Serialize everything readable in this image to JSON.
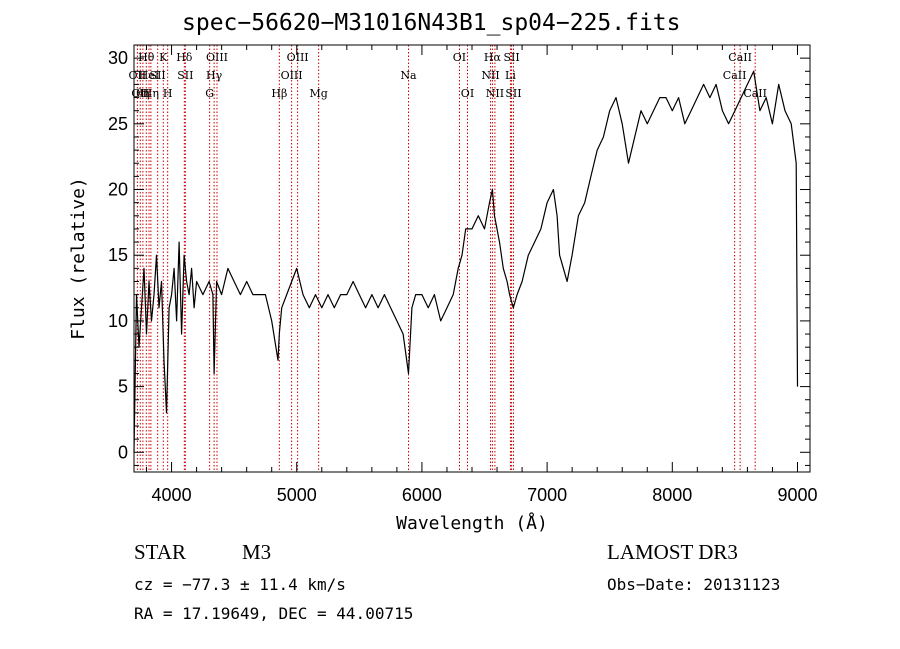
{
  "chart_data": {
    "type": "line",
    "title": "spec−56620−M31016N43B1_sp04−225.fits",
    "xlabel": "Wavelength (Å)",
    "ylabel": "Flux (relative)",
    "xlim": [
      3700,
      9100
    ],
    "ylim": [
      -1.5,
      31
    ],
    "xticks": [
      4000,
      5000,
      6000,
      7000,
      8000,
      9000
    ],
    "yticks": [
      0,
      5,
      10,
      15,
      20,
      25,
      30
    ],
    "line_color": "#000000",
    "marker_color": "#cc0000",
    "series": [
      {
        "name": "flux",
        "x": [
          3700,
          3720,
          3740,
          3760,
          3780,
          3800,
          3820,
          3840,
          3860,
          3880,
          3900,
          3920,
          3940,
          3960,
          3980,
          4000,
          4020,
          4040,
          4060,
          4080,
          4100,
          4120,
          4140,
          4160,
          4180,
          4200,
          4250,
          4300,
          4330,
          4340,
          4360,
          4400,
          4450,
          4500,
          4550,
          4600,
          4650,
          4700,
          4750,
          4800,
          4850,
          4861,
          4880,
          4920,
          4960,
          5000,
          5050,
          5100,
          5150,
          5200,
          5250,
          5300,
          5350,
          5400,
          5450,
          5500,
          5550,
          5600,
          5650,
          5700,
          5750,
          5800,
          5850,
          5893,
          5920,
          5950,
          6000,
          6050,
          6100,
          6150,
          6200,
          6250,
          6290,
          6320,
          6350,
          6400,
          6450,
          6500,
          6540,
          6563,
          6580,
          6600,
          6620,
          6650,
          6680,
          6700,
          6730,
          6760,
          6800,
          6850,
          6900,
          6950,
          7000,
          7050,
          7080,
          7100,
          7130,
          7160,
          7200,
          7250,
          7300,
          7350,
          7400,
          7450,
          7500,
          7550,
          7600,
          7650,
          7700,
          7750,
          7800,
          7850,
          7900,
          7950,
          8000,
          8050,
          8100,
          8150,
          8200,
          8250,
          8300,
          8350,
          8400,
          8450,
          8500,
          8550,
          8600,
          8650,
          8700,
          8750,
          8800,
          8850,
          8900,
          8950,
          8990,
          9000
        ],
        "y": [
          0,
          12,
          8,
          11,
          14,
          9,
          13,
          10,
          12,
          15,
          11,
          13,
          7,
          3,
          11,
          12,
          14,
          10,
          16,
          9,
          15,
          13,
          12,
          14,
          11,
          13,
          12,
          13,
          12,
          6,
          13,
          12,
          14,
          13,
          12,
          13,
          12,
          12,
          12,
          10,
          7,
          9,
          11,
          12,
          13,
          14,
          12,
          11,
          12,
          11,
          12,
          11,
          12,
          12,
          13,
          12,
          11,
          12,
          11,
          12,
          11,
          10,
          9,
          6,
          11,
          12,
          12,
          11,
          12,
          10,
          11,
          12,
          14,
          15,
          17,
          17,
          18,
          17,
          19,
          20,
          18,
          17,
          16,
          14,
          13,
          12,
          11,
          12,
          13,
          15,
          16,
          17,
          19,
          20,
          18,
          15,
          14,
          13,
          15,
          18,
          19,
          21,
          23,
          24,
          26,
          27,
          25,
          22,
          24,
          26,
          25,
          26,
          27,
          27,
          26,
          27,
          25,
          26,
          27,
          28,
          27,
          28,
          26,
          25,
          26,
          27,
          28,
          29,
          26,
          27,
          25,
          28,
          26,
          25,
          22,
          5
        ]
      }
    ],
    "lines": [
      {
        "wl": 3727,
        "label": "OII",
        "row": 1
      },
      {
        "wl": 3750,
        "label": "OII",
        "row": 2
      },
      {
        "wl": 3771,
        "label": "θη",
        "row": 2
      },
      {
        "wl": 3798,
        "label": "Hθ",
        "row": 0
      },
      {
        "wl": 3820,
        "label": "HeI",
        "row": 1
      },
      {
        "wl": 3835,
        "label": "Hη",
        "row": 2
      },
      {
        "wl": 3889,
        "label": "SII",
        "row": 1
      },
      {
        "wl": 3934,
        "label": "K",
        "row": 0
      },
      {
        "wl": 3969,
        "label": "H",
        "row": 2
      },
      {
        "wl": 4102,
        "label": "Hδ",
        "row": 0
      },
      {
        "wl": 4110,
        "label": "SII",
        "row": 1
      },
      {
        "wl": 4304,
        "label": "G",
        "row": 2
      },
      {
        "wl": 4340,
        "label": "Hγ",
        "row": 1
      },
      {
        "wl": 4363,
        "label": "OIII",
        "row": 0
      },
      {
        "wl": 4861,
        "label": "Hβ",
        "row": 2
      },
      {
        "wl": 4959,
        "label": "OIII",
        "row": 1
      },
      {
        "wl": 5007,
        "label": "OIII",
        "row": 0
      },
      {
        "wl": 5175,
        "label": "Mg",
        "row": 2
      },
      {
        "wl": 5893,
        "label": "Na",
        "row": 1
      },
      {
        "wl": 6300,
        "label": "OI",
        "row": 0
      },
      {
        "wl": 6364,
        "label": "OI",
        "row": 2
      },
      {
        "wl": 6548,
        "label": "NII",
        "row": 1
      },
      {
        "wl": 6563,
        "label": "Hα",
        "row": 0
      },
      {
        "wl": 6583,
        "label": "NII",
        "row": 2
      },
      {
        "wl": 6707,
        "label": "Li",
        "row": 1
      },
      {
        "wl": 6716,
        "label": "SII",
        "row": 0
      },
      {
        "wl": 6731,
        "label": "SII",
        "row": 2
      },
      {
        "wl": 8498,
        "label": "CaII",
        "row": 1
      },
      {
        "wl": 8542,
        "label": "CaII",
        "row": 0
      },
      {
        "wl": 8662,
        "label": "CaII",
        "row": 2
      }
    ]
  },
  "info": {
    "object_class": "STAR",
    "subclass": "M3",
    "survey": "LAMOST DR3",
    "cz": "cz = −77.3 ± 11.4 km/s",
    "obs_date": "Obs−Date: 20131123",
    "coords": "RA =  17.19649, DEC =  44.00715"
  }
}
